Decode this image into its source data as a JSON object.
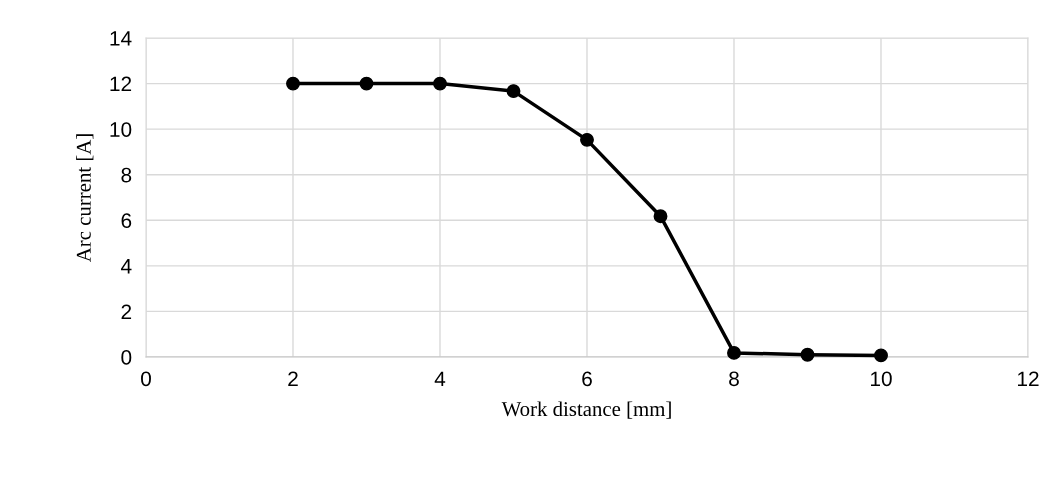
{
  "chart_data": {
    "type": "line",
    "xlabel": "Work distance [mm]",
    "ylabel": "Arc current [A]",
    "x": [
      2,
      3,
      4,
      5,
      6,
      7,
      8,
      9,
      10
    ],
    "series": [
      {
        "color": "#000000",
        "values": [
          12,
          12,
          12,
          11.67,
          9.53,
          6.18,
          0.18,
          0.1,
          0.07
        ]
      }
    ],
    "xlim": [
      0,
      12
    ],
    "xticks": [
      0,
      2,
      4,
      6,
      8,
      10,
      12
    ],
    "ylim": [
      0,
      14
    ],
    "yticks": [
      0,
      2,
      4,
      6,
      8,
      10,
      12,
      14
    ],
    "grid": true,
    "marker": "circle",
    "line_style": "solid"
  }
}
